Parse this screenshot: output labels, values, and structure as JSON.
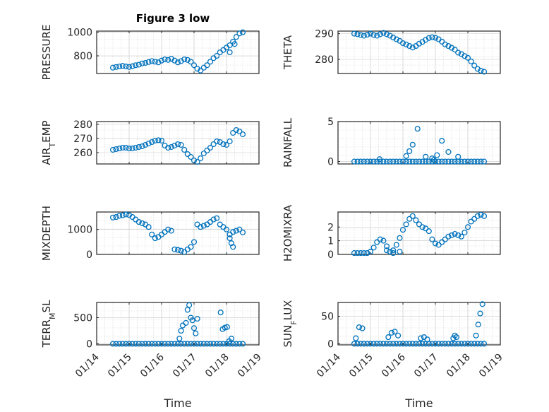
{
  "figure": {
    "title": "Figure 3 low"
  },
  "chart_data": [
    {
      "type": "scatter",
      "ylabel": "PRESSURE",
      "xlabel": "",
      "ylim": [
        650,
        1010
      ],
      "yticks": [
        800,
        1000
      ],
      "xlim": [
        0,
        5
      ],
      "xticks": [
        "01/14",
        "01/15",
        "01/16",
        "01/17",
        "01/18",
        "01/19"
      ],
      "show_xticklabels": false,
      "grid": true,
      "minor_grid": true,
      "marker_color": "#0072BD",
      "series": [
        {
          "x": [
            0.5,
            0.6,
            0.7,
            0.8,
            0.9,
            1.0,
            1.1,
            1.2,
            1.3,
            1.4,
            1.5,
            1.6,
            1.7,
            1.8,
            1.9,
            2.0,
            2.1,
            2.2,
            2.3,
            2.4,
            2.5,
            2.6,
            2.7,
            2.8,
            2.9,
            3.0,
            3.1,
            3.2,
            3.3,
            3.4,
            3.5,
            3.6,
            3.7,
            3.8,
            3.9,
            4.0,
            4.1,
            4.2,
            4.3,
            4.4,
            4.5,
            4.1,
            4.25
          ],
          "y": [
            700,
            705,
            710,
            715,
            710,
            705,
            712,
            720,
            725,
            735,
            740,
            748,
            755,
            750,
            745,
            760,
            770,
            765,
            775,
            760,
            745,
            755,
            770,
            765,
            750,
            720,
            690,
            675,
            700,
            720,
            750,
            780,
            800,
            830,
            850,
            870,
            890,
            920,
            960,
            990,
            1000,
            830,
            900
          ]
        }
      ]
    },
    {
      "type": "scatter",
      "ylabel": "THETA",
      "xlabel": "",
      "ylim": [
        274.5,
        291
      ],
      "yticks": [
        280,
        290
      ],
      "xlim": [
        0,
        5
      ],
      "xticks": [
        "01/14",
        "01/15",
        "01/16",
        "01/17",
        "01/18",
        "01/19"
      ],
      "show_xticklabels": false,
      "grid": true,
      "minor_grid": true,
      "marker_color": "#0072BD",
      "series": [
        {
          "x": [
            0.5,
            0.6,
            0.7,
            0.8,
            0.9,
            1.0,
            1.1,
            1.2,
            1.3,
            1.4,
            1.5,
            1.6,
            1.7,
            1.8,
            1.9,
            2.0,
            2.1,
            2.2,
            2.3,
            2.4,
            2.5,
            2.6,
            2.7,
            2.8,
            2.9,
            3.0,
            3.1,
            3.2,
            3.3,
            3.4,
            3.5,
            3.6,
            3.7,
            3.8,
            3.9,
            4.0,
            4.1,
            4.2,
            4.3,
            4.4,
            4.5
          ],
          "y": [
            290,
            289.8,
            289.5,
            289.2,
            289.6,
            290,
            289.5,
            289.2,
            289.8,
            290.3,
            289.8,
            289.2,
            288.5,
            287.8,
            287.2,
            286.3,
            285.8,
            285.2,
            284.6,
            285.2,
            286.1,
            286.8,
            287.6,
            288.3,
            288.6,
            288.4,
            287.8,
            286.9,
            285.8,
            285.2,
            284.5,
            283.8,
            282.6,
            282.1,
            281.3,
            280.6,
            279.2,
            277.6,
            276.3,
            275.6,
            275.2
          ]
        }
      ]
    },
    {
      "type": "scatter",
      "ylabel": "AIR_TEMP",
      "xlabel": "",
      "ylim": [
        252,
        282
      ],
      "yticks": [
        260,
        270,
        280
      ],
      "xlim": [
        0,
        5
      ],
      "xticks": [
        "01/14",
        "01/15",
        "01/16",
        "01/17",
        "01/18",
        "01/19"
      ],
      "show_xticklabels": false,
      "grid": true,
      "minor_grid": true,
      "marker_color": "#0072BD",
      "series": [
        {
          "x": [
            0.5,
            0.6,
            0.7,
            0.8,
            0.9,
            1.0,
            1.1,
            1.2,
            1.3,
            1.4,
            1.5,
            1.6,
            1.7,
            1.8,
            1.9,
            2.0,
            2.1,
            2.2,
            2.3,
            2.4,
            2.5,
            2.6,
            2.7,
            2.8,
            2.9,
            3.0,
            3.1,
            3.2,
            3.3,
            3.4,
            3.5,
            3.6,
            3.7,
            3.8,
            3.9,
            4.0,
            4.1,
            4.2,
            4.3,
            4.4,
            4.5
          ],
          "y": [
            262,
            262.5,
            263,
            263.5,
            263.5,
            263,
            263,
            263.5,
            264,
            264.5,
            265.5,
            266.5,
            267.5,
            268.5,
            268.8,
            268.5,
            265,
            263.5,
            264,
            265,
            266,
            265.5,
            262,
            259,
            257,
            254.5,
            253.5,
            256,
            259.5,
            261.5,
            263.5,
            266,
            268,
            267.5,
            266,
            265.5,
            268,
            274,
            276,
            275,
            273
          ]
        }
      ]
    },
    {
      "type": "scatter",
      "ylabel": "RAINFALL",
      "xlabel": "",
      "ylim": [
        -0.3,
        5
      ],
      "yticks": [
        0,
        5
      ],
      "xlim": [
        0,
        5
      ],
      "xticks": [
        "01/14",
        "01/15",
        "01/16",
        "01/17",
        "01/18",
        "01/19"
      ],
      "show_xticklabels": false,
      "grid": true,
      "minor_grid": true,
      "marker_color": "#0072BD",
      "series": [
        {
          "x": [
            0.5,
            0.6,
            0.7,
            0.8,
            0.9,
            1.0,
            1.1,
            1.2,
            1.3,
            1.4,
            1.5,
            1.6,
            1.7,
            1.8,
            1.9,
            2.0,
            2.1,
            2.2,
            2.3,
            2.4,
            2.5,
            2.6,
            2.7,
            2.8,
            2.9,
            3.0,
            3.1,
            3.2,
            3.3,
            3.4,
            3.5,
            3.6,
            3.7,
            3.8,
            3.9,
            4.0,
            4.1,
            4.2,
            4.3,
            4.4,
            4.5,
            1.28,
            2.1,
            2.2,
            2.3,
            2.45,
            2.7,
            2.9,
            2.95,
            3.05,
            3.2,
            3.4,
            3.7
          ],
          "y": [
            0,
            0,
            0,
            0,
            0,
            0,
            0,
            0,
            0,
            0,
            0,
            0,
            0,
            0,
            0,
            0,
            0,
            0,
            0,
            0,
            0,
            0,
            0,
            0,
            0,
            0,
            0,
            0,
            0,
            0,
            0,
            0,
            0,
            0,
            0,
            0,
            0,
            0,
            0,
            0,
            0,
            0.3,
            0.7,
            1.3,
            2.1,
            4.1,
            0.6,
            0.4,
            0.2,
            0.8,
            2.6,
            1.2,
            0.6
          ]
        }
      ]
    },
    {
      "type": "scatter",
      "ylabel": "MIXDEPTH",
      "xlabel": "",
      "ylim": [
        0,
        1700
      ],
      "yticks": [
        0,
        1000
      ],
      "xlim": [
        0,
        5
      ],
      "xticks": [
        "01/14",
        "01/15",
        "01/16",
        "01/17",
        "01/18",
        "01/19"
      ],
      "show_xticklabels": false,
      "grid": true,
      "minor_grid": true,
      "marker_color": "#0072BD",
      "series": [
        {
          "x": [
            0.5,
            0.6,
            0.7,
            0.8,
            0.9,
            1.0,
            1.1,
            1.2,
            1.3,
            1.4,
            1.5,
            1.6,
            1.7,
            1.8,
            1.9,
            2.0,
            2.1,
            2.2,
            2.3,
            2.4,
            2.5,
            2.6,
            2.7,
            2.8,
            2.9,
            3.0,
            3.1,
            3.2,
            3.3,
            3.4,
            3.5,
            3.6,
            3.7,
            3.8,
            3.9,
            4.0,
            4.1,
            4.2,
            4.3,
            4.4,
            4.5,
            4.15,
            4.2,
            4.1
          ],
          "y": [
            1480,
            1500,
            1550,
            1570,
            1600,
            1580,
            1500,
            1400,
            1300,
            1250,
            1200,
            1100,
            800,
            650,
            700,
            800,
            900,
            1000,
            950,
            200,
            180,
            150,
            100,
            200,
            300,
            500,
            1200,
            1100,
            1150,
            1200,
            1300,
            1400,
            1450,
            1200,
            1100,
            1000,
            800,
            900,
            950,
            1000,
            880,
            450,
            300,
            650
          ]
        }
      ]
    },
    {
      "type": "scatter",
      "ylabel": "H2OMIXRA",
      "xlabel": "",
      "ylim": [
        0,
        3.1
      ],
      "yticks": [
        0,
        1,
        2
      ],
      "xlim": [
        0,
        5
      ],
      "xticks": [
        "01/14",
        "01/15",
        "01/16",
        "01/17",
        "01/18",
        "01/19"
      ],
      "show_xticklabels": false,
      "grid": true,
      "minor_grid": true,
      "marker_color": "#0072BD",
      "series": [
        {
          "x": [
            0.5,
            0.6,
            0.7,
            0.8,
            0.9,
            1.0,
            1.1,
            1.2,
            1.3,
            1.4,
            1.5,
            1.6,
            1.7,
            1.8,
            1.9,
            2.0,
            2.1,
            2.2,
            2.3,
            2.4,
            2.5,
            2.6,
            2.7,
            2.8,
            2.9,
            3.0,
            3.1,
            3.2,
            3.3,
            3.4,
            3.5,
            3.6,
            3.7,
            3.8,
            3.9,
            4.0,
            4.1,
            4.2,
            4.3,
            4.4,
            4.5,
            1.5,
            1.7,
            1.9
          ],
          "y": [
            0.1,
            0.1,
            0.1,
            0.1,
            0.1,
            0.2,
            0.5,
            0.9,
            1.1,
            1.0,
            0.6,
            0.2,
            0.3,
            0.7,
            1.2,
            1.8,
            2.2,
            2.6,
            2.8,
            2.5,
            2.2,
            2.0,
            1.9,
            1.7,
            1.1,
            0.8,
            0.7,
            0.9,
            1.1,
            1.3,
            1.4,
            1.5,
            1.4,
            1.3,
            1.6,
            2.0,
            2.4,
            2.6,
            2.8,
            2.9,
            2.8,
            0.3,
            0.1,
            0.2
          ]
        }
      ]
    },
    {
      "type": "scatter",
      "ylabel": "TERR_MSL",
      "xlabel": "Time",
      "ylim": [
        -20,
        790
      ],
      "yticks": [
        0,
        500
      ],
      "xlim": [
        0,
        5
      ],
      "xticks": [
        "01/14",
        "01/15",
        "01/16",
        "01/17",
        "01/18",
        "01/19"
      ],
      "show_xticklabels": true,
      "grid": true,
      "minor_grid": true,
      "marker_color": "#0072BD",
      "series": [
        {
          "x": [
            0.5,
            0.6,
            0.7,
            0.8,
            0.9,
            1.0,
            1.1,
            1.2,
            1.3,
            1.4,
            1.5,
            1.6,
            1.7,
            1.8,
            1.9,
            2.0,
            2.1,
            2.2,
            2.3,
            2.4,
            2.5,
            2.6,
            2.7,
            2.8,
            2.9,
            3.0,
            3.1,
            3.2,
            3.3,
            3.4,
            3.5,
            3.6,
            3.7,
            3.8,
            3.9,
            4.0,
            4.1,
            4.2,
            4.3,
            4.4,
            4.5,
            2.55,
            2.6,
            2.65,
            2.75,
            2.8,
            2.85,
            2.9,
            2.95,
            3.0,
            3.05,
            3.1,
            3.82,
            3.88,
            3.95,
            4.02,
            4.08,
            4.15
          ],
          "y": [
            0,
            0,
            0,
            0,
            0,
            0,
            0,
            0,
            0,
            0,
            0,
            0,
            0,
            0,
            0,
            0,
            0,
            0,
            0,
            0,
            0,
            0,
            0,
            0,
            0,
            0,
            0,
            0,
            0,
            0,
            0,
            0,
            0,
            0,
            0,
            0,
            0,
            0,
            0,
            0,
            0,
            100,
            250,
            350,
            400,
            650,
            740,
            500,
            450,
            300,
            200,
            480,
            600,
            280,
            310,
            320,
            50,
            100
          ]
        }
      ]
    },
    {
      "type": "scatter",
      "ylabel": "SUN_FLUX",
      "xlabel": "Time",
      "ylim": [
        -2,
        75
      ],
      "yticks": [
        0,
        50
      ],
      "xlim": [
        0,
        5
      ],
      "xticks": [
        "01/14",
        "01/15",
        "01/16",
        "01/17",
        "01/18",
        "01/19"
      ],
      "show_xticklabels": true,
      "grid": true,
      "minor_grid": true,
      "marker_color": "#0072BD",
      "series": [
        {
          "x": [
            0.5,
            0.6,
            0.7,
            0.8,
            0.9,
            1.0,
            1.1,
            1.2,
            1.3,
            1.4,
            1.5,
            1.6,
            1.7,
            1.8,
            1.9,
            2.0,
            2.1,
            2.2,
            2.3,
            2.4,
            2.5,
            2.6,
            2.7,
            2.8,
            2.9,
            3.0,
            3.1,
            3.2,
            3.3,
            3.4,
            3.5,
            3.6,
            3.7,
            3.8,
            3.9,
            4.0,
            4.1,
            4.2,
            4.3,
            4.4,
            4.5,
            0.55,
            0.65,
            0.75,
            1.55,
            1.65,
            1.75,
            1.85,
            2.55,
            2.65,
            2.75,
            3.55,
            3.6,
            3.65,
            4.25,
            4.32,
            4.38,
            4.45
          ],
          "y": [
            0,
            0,
            0,
            0,
            0,
            0,
            0,
            0,
            0,
            0,
            0,
            0,
            0,
            0,
            0,
            0,
            0,
            0,
            0,
            0,
            0,
            0,
            0,
            0,
            0,
            0,
            0,
            0,
            0,
            0,
            0,
            0,
            0,
            0,
            0,
            0,
            0,
            0,
            0,
            0,
            0,
            10,
            30,
            28,
            12,
            20,
            22,
            15,
            10,
            12,
            8,
            10,
            15,
            12,
            15,
            35,
            55,
            72
          ]
        }
      ]
    }
  ]
}
